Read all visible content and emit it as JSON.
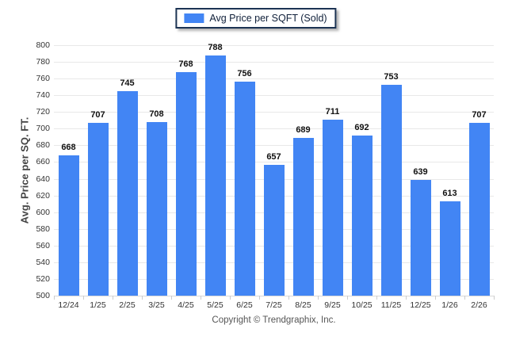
{
  "legend": {
    "label": "Avg Price per SQFT (Sold)",
    "swatch_color": "#4285f4"
  },
  "footer": {
    "text": "Copyright © Trendgraphix, Inc."
  },
  "chart_data": {
    "type": "bar",
    "title": "",
    "series_name": "Avg Price per SQFT (Sold)",
    "categories": [
      "12/24",
      "1/25",
      "2/25",
      "3/25",
      "4/25",
      "5/25",
      "6/25",
      "7/25",
      "8/25",
      "9/25",
      "10/25",
      "11/25",
      "12/25",
      "1/26",
      "2/26"
    ],
    "values": [
      668,
      707,
      745,
      708,
      768,
      788,
      756,
      657,
      689,
      711,
      692,
      753,
      639,
      613,
      707
    ],
    "xlabel": "",
    "ylabel": "Avg. Price per SQ. FT.",
    "ylim": [
      500,
      800
    ],
    "ytick_step": 20,
    "grid": true,
    "value_labels": true,
    "legend_position": "top-center",
    "bar_color": "#4285f4",
    "gridline_color": "#e8e8e8"
  }
}
